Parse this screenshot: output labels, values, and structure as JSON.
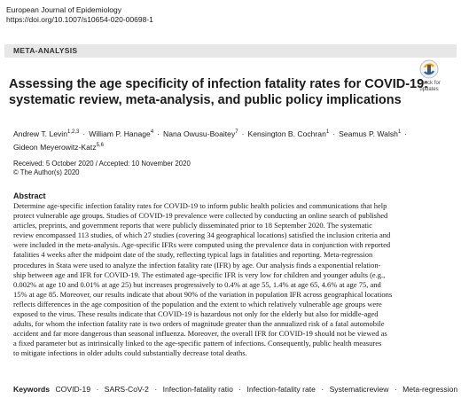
{
  "header": {
    "journal": "European Journal of Epidemiology",
    "doi": "https://doi.org/10.1007/s10654-020-00698-1"
  },
  "article_type": "META-ANALYSIS",
  "check_updates": {
    "line1": "Check for",
    "line2": "updates"
  },
  "title": [
    "Assessing the age specificity of infection fatality rates for COVID‑19:",
    "systematic review, meta‑analysis, and public policy implications"
  ],
  "authors": [
    {
      "name": "Andrew T. Levin",
      "sup": "1,2,3"
    },
    {
      "name": "William P. Hanage",
      "sup": "4"
    },
    {
      "name": "Nana Owusu‑Boaitey",
      "sup": "7"
    },
    {
      "name": "Kensington B. Cochran",
      "sup": "1"
    },
    {
      "name": "Seamus P. Walsh",
      "sup": "1"
    },
    {
      "name": "Gideon Meyerowitz‑Katz",
      "sup": "5,6"
    }
  ],
  "dates": {
    "received_accepted": "Received: 5 October 2020 / Accepted: 10 November 2020",
    "copyright": "© The Author(s) 2020"
  },
  "abstract": {
    "heading": "Abstract",
    "lines": [
      "Determine age-specific infection fatality rates for COVID-19 to inform public health policies and communications that help",
      "protect vulnerable age groups. Studies of COVID-19 prevalence were collected by conducting an online search of published",
      "articles, preprints, and government reports that were publicly disseminated prior to 18 September 2020. The systematic",
      "review encompassed 113 studies, of which 27 studies (covering 34 geographical locations) satisfied the inclusion criteria and",
      "were included in the meta-analysis. Age-specific IFRs were computed using the prevalence data in conjunction with reported",
      "fatalities 4 weeks after the midpoint date of the study, reflecting typical lags in fatalities and reporting. Meta-regression",
      "procedures in Stata were used to analyze the infection fatality rate (IFR) by age. Our analysis finds a exponential relation-",
      "ship between age and IFR for COVID-19. The estimated age-specific IFR is very low for children and younger adults (e.g.,",
      "0.002% at age 10 and 0.01% at age 25) but increases progressively to 0.4% at age 55, 1.4% at age 65, 4.6% at age 75, and",
      "15% at age 85. Moreover, our results indicate that about 90% of the variation in population IFR across geographical locations",
      "reflects differences in the age composition of the population and the extent to which relatively vulnerable age groups were",
      "exposed to the virus. These results indicate that COVID-19 is hazardous not only for the elderly but also for middle-aged",
      "adults, for whom the infection fatality rate is two orders of magnitude greater than the annualized risk of a fatal automobile",
      "accident and far more dangerous than seasonal influenza. Moreover, the overall IFR for COVID-19 should not be viewed as",
      "a fixed parameter but as intrinsically linked to the age-specific pattern of infections. Consequently, public health measures",
      "to mitigate infections in older adults could substantially decrease total deaths."
    ]
  },
  "keywords": {
    "label": "Keywords",
    "items": [
      "COVID-19",
      "SARS-CoV-2",
      "Infection-fatality ratio",
      "Infection-fatality rate",
      "Systematicreview",
      "Meta-regression"
    ],
    "separator": "·"
  }
}
